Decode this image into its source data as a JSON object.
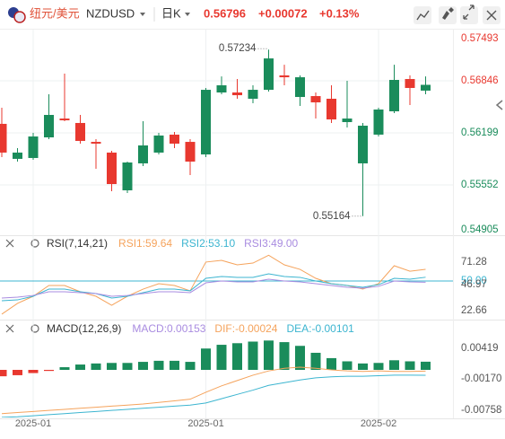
{
  "header": {
    "pair_cn": "纽元/美元",
    "symbol": "NZDUSD",
    "period": "日K",
    "price": "0.56796",
    "change": "+0.00072",
    "change_pct": "+0.13%"
  },
  "chart_data": [
    {
      "type": "candlestick",
      "categories": [
        null,
        null,
        "2025-01",
        null,
        null,
        null,
        null,
        null,
        null,
        null,
        null,
        null,
        null,
        "2025-01",
        null,
        null,
        null,
        null,
        null,
        null,
        null,
        null,
        null,
        null,
        "2025-02",
        null,
        null,
        null
      ],
      "open": [
        0.56311,
        0.55876,
        0.55887,
        0.56143,
        0.56377,
        0.56322,
        0.56087,
        0.55954,
        0.55485,
        0.5582,
        0.55954,
        0.56177,
        0.56087,
        0.55931,
        0.56701,
        0.56701,
        0.56623,
        0.56734,
        0.56913,
        0.56645,
        0.56656,
        0.56623,
        0.56333,
        0.5582,
        0.56177,
        0.56467,
        0.56868,
        0.56724
      ],
      "high": [
        0.56511,
        0.56009,
        0.56199,
        0.56678,
        0.56935,
        0.56422,
        0.56121,
        0.55976,
        0.55842,
        0.56344,
        0.56199,
        0.5621,
        0.56121,
        0.56757,
        0.56901,
        0.56868,
        0.5679,
        0.57234,
        0.57046,
        0.56913,
        0.56701,
        0.5679,
        0.56846,
        0.56322,
        0.56511,
        0.57046,
        0.56913,
        0.56901
      ],
      "low": [
        0.55898,
        0.55842,
        0.55864,
        0.56121,
        0.56344,
        0.56065,
        0.55753,
        0.55474,
        0.55452,
        0.55786,
        0.55931,
        0.56009,
        0.55675,
        0.55898,
        0.56678,
        0.56623,
        0.56567,
        0.56712,
        0.5679,
        0.56534,
        0.56377,
        0.56322,
        0.56266,
        0.55164,
        0.56154,
        0.56444,
        0.56545,
        0.56678
      ],
      "close": [
        0.55954,
        0.55954,
        0.56154,
        0.56422,
        0.56355,
        0.56099,
        0.56065,
        0.55563,
        0.55831,
        0.56043,
        0.56166,
        0.56065,
        0.55842,
        0.56734,
        0.5679,
        0.56667,
        0.56734,
        0.57124,
        0.5689,
        0.5689,
        0.56578,
        0.56366,
        0.56377,
        0.56288,
        0.56489,
        0.56857,
        0.56757,
        0.56796
      ],
      "up_color": "#1a8c5b",
      "down_color": "#e8382f",
      "ylim": [
        0.54905,
        0.57493
      ],
      "yticks": [
        0.57493,
        0.56846,
        0.56199,
        0.55552,
        0.54905
      ],
      "grid": true,
      "high_label": "0.57234",
      "low_label": "0.55164"
    },
    {
      "type": "line",
      "title": "RSI(7,14,21)",
      "series": [
        {
          "name": "RSI1:59.64",
          "color": "#f5a35c",
          "values": [
            22.66,
            31.5,
            37.4,
            46.3,
            46.3,
            41.1,
            37.4,
            30,
            37.4,
            43.3,
            47.8,
            46.3,
            41.9,
            65.6,
            67,
            63.3,
            64.8,
            71.28,
            63.3,
            59.6,
            52.2,
            47.8,
            46.3,
            43.3,
            47.8,
            62.6,
            58.1,
            59.64
          ]
        },
        {
          "name": "RSI2:53.10",
          "color": "#3cb5d0",
          "values": [
            33.7,
            34.4,
            37.4,
            43.3,
            43.3,
            41.1,
            39.6,
            35.9,
            37.4,
            40.4,
            43.3,
            43.3,
            41.9,
            52.2,
            53.7,
            53,
            53,
            55.9,
            53.7,
            53,
            50,
            47.8,
            46.3,
            44.8,
            47,
            52.2,
            51.5,
            53.1
          ]
        },
        {
          "name": "RSI3:49.00",
          "color": "#a98ce0",
          "values": [
            35.9,
            36.7,
            38.1,
            41.1,
            41.1,
            40.4,
            39.6,
            37.4,
            38.1,
            39.6,
            41.1,
            41.1,
            40.4,
            48.5,
            50,
            49.3,
            49.3,
            51.5,
            50,
            49.3,
            47.8,
            46.3,
            44.8,
            44.1,
            45.6,
            50,
            49.3,
            49
          ]
        }
      ],
      "ylim": [
        21.11,
        72.96
      ],
      "yticks": [
        71.28,
        {
          "value": 50,
          "label": "50.00"
        },
        46.97,
        22.66
      ],
      "reference_line": {
        "value": 50,
        "color": "#3cb5d0"
      }
    },
    {
      "type": "line",
      "title": "MACD(12,26,9)",
      "series": [
        {
          "name": "MACD:0.00153",
          "type": "bar",
          "color": "#1a8c5b",
          "negative_color": "#e8382f",
          "label_color": "#a98ce0",
          "values": [
            -0.0012,
            -0.001,
            -0.0006,
            -0.0002,
            0.0005,
            0.001,
            0.0012,
            0.0013,
            0.0013,
            0.0015,
            0.0017,
            0.0017,
            0.0015,
            0.004,
            0.0047,
            0.005,
            0.0053,
            0.0055,
            0.0052,
            0.0045,
            0.0032,
            0.0022,
            0.0016,
            0.0012,
            0.0013,
            0.0018,
            0.0016,
            0.00153
          ]
        },
        {
          "name": "DIF:-0.00024",
          "color": "#f5a35c",
          "values": [
            -0.0082,
            -0.008,
            -0.0078,
            -0.0076,
            -0.0074,
            -0.0072,
            -0.007,
            -0.0068,
            -0.0066,
            -0.0064,
            -0.0061,
            -0.0058,
            -0.0055,
            -0.0042,
            -0.003,
            -0.002,
            -0.001,
            -0.0002,
            0.0003,
            0.0005,
            0.0003,
            0,
            -0.0002,
            -0.0003,
            -0.0002,
            -0.0003,
            -0.0003,
            -0.00024
          ]
        },
        {
          "name": "DEA:-0.00101",
          "color": "#3cb5d0",
          "values": [
            -0.0089,
            -0.0088,
            -0.0086,
            -0.0084,
            -0.0082,
            -0.008,
            -0.0078,
            -0.0076,
            -0.0074,
            -0.0072,
            -0.007,
            -0.0068,
            -0.0066,
            -0.0062,
            -0.0054,
            -0.0046,
            -0.0038,
            -0.0029,
            -0.0024,
            -0.0019,
            -0.0015,
            -0.0013,
            -0.0012,
            -0.0012,
            -0.0011,
            -0.001,
            -0.001,
            -0.00101
          ]
        }
      ],
      "ylim": [
        -0.00892,
        0.00572
      ],
      "yticks": [
        0.00419,
        {
          "value": -0.0017,
          "label": "-0.00170"
        },
        -0.00758
      ]
    }
  ]
}
